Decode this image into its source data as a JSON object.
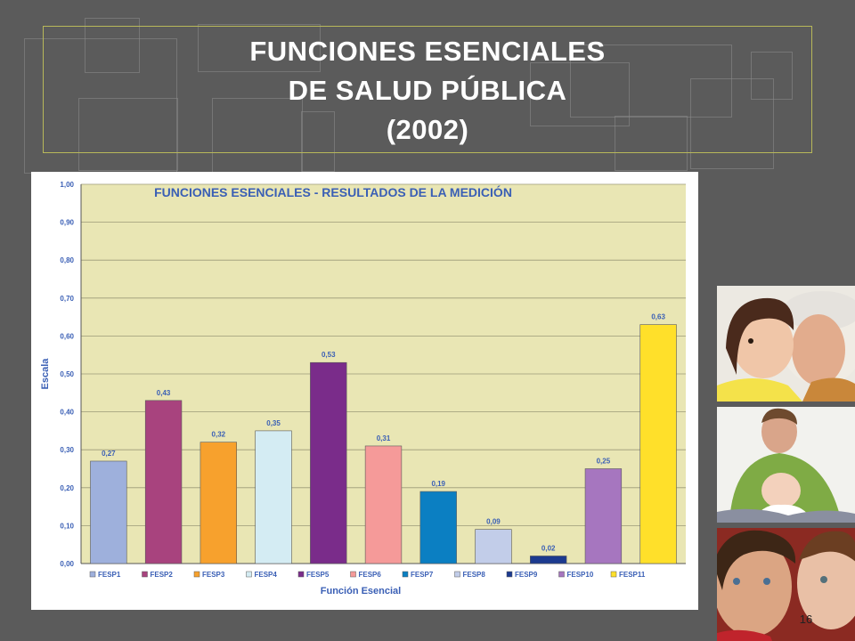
{
  "slide": {
    "title_lines": [
      "FUNCIONES ESENCIALES",
      "DE SALUD PÚBLICA",
      "(2002)"
    ],
    "page_number": "16"
  },
  "photos": [
    "grandmother-child-photo",
    "father-baby-photo",
    "children-faces-photo"
  ],
  "chart_data": {
    "type": "bar",
    "title": "FUNCIONES ESENCIALES - RESULTADOS DE LA MEDICIÓN",
    "xlabel": "Función Esencial",
    "ylabel": "Escala",
    "ylim": [
      0,
      1
    ],
    "yticks": [
      "0,00",
      "0,10",
      "0,20",
      "0,30",
      "0,40",
      "0,50",
      "0,60",
      "0,70",
      "0,80",
      "0,90",
      "1,00"
    ],
    "grid": true,
    "legend_position": "bottom",
    "categories": [
      "FESP1",
      "FESP2",
      "FESP3",
      "FESP4",
      "FESP5",
      "FESP6",
      "FESP7",
      "FESP8",
      "FESP9",
      "FESP10",
      "FESP11"
    ],
    "values": [
      0.27,
      0.43,
      0.32,
      0.35,
      0.53,
      0.31,
      0.19,
      0.09,
      0.02,
      0.25,
      0.63
    ],
    "value_labels": [
      "0,27",
      "0,43",
      "0,32",
      "0,35",
      "0,53",
      "0,31",
      "0,19",
      "0,09",
      "0,02",
      "0,25",
      "0,63"
    ],
    "colors": [
      "#9eb0dc",
      "#a8437e",
      "#f7a12d",
      "#d4ecf3",
      "#7a2c8a",
      "#f59a99",
      "#0b7fc2",
      "#c2cde9",
      "#1c3a8f",
      "#a676bf",
      "#ffe02a"
    ],
    "plot_background": "#e9e6b4",
    "text_color": "#3a5fb5"
  }
}
